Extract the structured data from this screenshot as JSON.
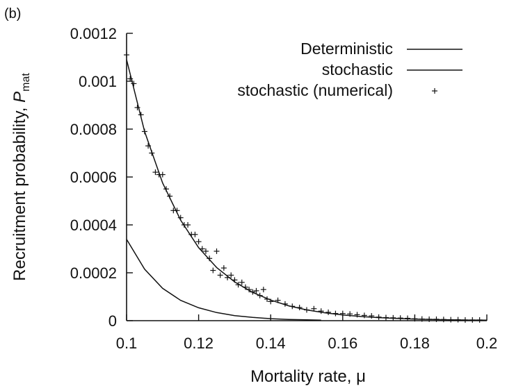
{
  "panel_label": "(b)",
  "chart_data": {
    "type": "line",
    "xlabel": "Mortality rate, μ",
    "ylabel_main": "Recruitment probability, ",
    "ylabel_symbol": "P",
    "ylabel_subscript": "mat",
    "xlim": [
      0.1,
      0.2
    ],
    "ylim": [
      0,
      0.0012
    ],
    "xticks": [
      0.1,
      0.12,
      0.14,
      0.16,
      0.18,
      0.2
    ],
    "xtick_labels": [
      "0.1",
      "0.12",
      "0.14",
      "0.16",
      "0.18",
      "0.2"
    ],
    "yticks": [
      0,
      0.0002,
      0.0004,
      0.0006,
      0.0008,
      0.001,
      0.0012
    ],
    "ytick_labels": [
      "0",
      "0.0002",
      "0.0004",
      "0.0006",
      "0.0008",
      "0.001",
      "0.0012"
    ],
    "grid": false,
    "legend_position": "top-right",
    "series": [
      {
        "name": "Deterministic",
        "style": "line",
        "x": [
          0.1,
          0.105,
          0.11,
          0.115,
          0.12,
          0.125,
          0.13,
          0.135,
          0.14,
          0.145,
          0.15,
          0.154
        ],
        "y": [
          0.00034,
          0.000215,
          0.000135,
          8.5e-05,
          5.4e-05,
          3.4e-05,
          2.1e-05,
          1.35e-05,
          8.5e-06,
          5.3e-06,
          3.4e-06,
          2.4e-06
        ]
      },
      {
        "name": "stochastic",
        "style": "line",
        "x": [
          0.1,
          0.105,
          0.11,
          0.115,
          0.12,
          0.125,
          0.13,
          0.135,
          0.14,
          0.145,
          0.15,
          0.155,
          0.16,
          0.165,
          0.17,
          0.175,
          0.18,
          0.185,
          0.19,
          0.195,
          0.2
        ],
        "y": [
          0.00109,
          0.00079,
          0.000575,
          0.00042,
          0.000305,
          0.000222,
          0.000162,
          0.000118,
          8.6e-05,
          6.2e-05,
          4.5e-05,
          3.3e-05,
          2.4e-05,
          1.75e-05,
          1.27e-05,
          9.2e-06,
          6.7e-06,
          4.9e-06,
          3.6e-06,
          2.6e-06,
          1.9e-06
        ]
      },
      {
        "name": "stochastic (numerical)",
        "style": "points",
        "x": [
          0.1,
          0.101,
          0.102,
          0.103,
          0.104,
          0.105,
          0.106,
          0.107,
          0.108,
          0.109,
          0.11,
          0.111,
          0.112,
          0.113,
          0.114,
          0.115,
          0.116,
          0.117,
          0.118,
          0.119,
          0.12,
          0.121,
          0.122,
          0.123,
          0.124,
          0.125,
          0.126,
          0.127,
          0.128,
          0.129,
          0.13,
          0.131,
          0.132,
          0.133,
          0.134,
          0.135,
          0.136,
          0.137,
          0.138,
          0.139,
          0.14,
          0.142,
          0.144,
          0.146,
          0.148,
          0.15,
          0.152,
          0.154,
          0.156,
          0.158,
          0.16,
          0.162,
          0.164,
          0.166,
          0.168,
          0.17,
          0.172,
          0.174,
          0.176,
          0.178,
          0.18,
          0.182,
          0.184,
          0.186,
          0.188,
          0.19,
          0.192,
          0.194,
          0.196,
          0.198
        ],
        "y": [
          0.00111,
          0.00101,
          0.00099,
          0.00089,
          0.00086,
          0.00079,
          0.00073,
          0.0007,
          0.00062,
          0.00061,
          0.00061,
          0.00055,
          0.00052,
          0.00046,
          0.00046,
          0.00043,
          0.0004,
          0.0004,
          0.00036,
          0.00036,
          0.00033,
          0.0003,
          0.00029,
          0.00026,
          0.00021,
          0.00029,
          0.00019,
          0.00022,
          0.00018,
          0.00019,
          0.00017,
          0.00015,
          0.00016,
          0.00014,
          0.00013,
          0.00012,
          0.000125,
          0.000105,
          0.00013,
          9e-05,
          8e-05,
          8.5e-05,
          7e-05,
          6e-05,
          5.5e-05,
          4.5e-05,
          5e-05,
          4e-05,
          3.5e-05,
          3e-05,
          3e-05,
          2.8e-05,
          2.5e-05,
          2.2e-05,
          2e-05,
          1.5e-05,
          1.3e-05,
          1.2e-05,
          1.1e-05,
          1e-05,
          8e-06,
          7e-06,
          6e-06,
          6e-06,
          5e-06,
          4e-06,
          4e-06,
          3e-06,
          3e-06,
          3e-06
        ]
      }
    ]
  }
}
